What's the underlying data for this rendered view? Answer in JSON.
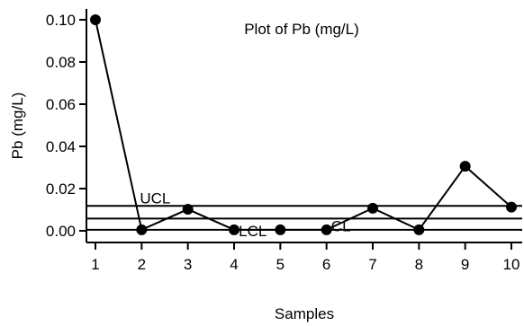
{
  "chart_data": {
    "type": "line",
    "title": "Plot of Pb (mg/L)",
    "xlabel": "Samples",
    "ylabel": "Pb (mg/L)",
    "x": [
      1,
      2,
      3,
      4,
      5,
      6,
      7,
      8,
      9,
      10
    ],
    "series": [
      {
        "values": [
          0.1,
          0.0005,
          0.0102,
          0.0005,
          0.0005,
          0.0005,
          0.0107,
          0.0005,
          0.0306,
          0.0112
        ]
      }
    ],
    "control_limits": [
      {
        "label": "UCL",
        "value": 0.0118
      },
      {
        "label": "CL",
        "value": 0.0058
      },
      {
        "label": "LCL",
        "value": 0.0005
      }
    ],
    "xlim": [
      1,
      10
    ],
    "ylim": [
      0,
      0.1
    ],
    "xticks": [
      "1",
      "2",
      "3",
      "4",
      "5",
      "6",
      "7",
      "8",
      "9",
      "10"
    ],
    "yticks": [
      "0.00",
      "0.02",
      "0.04",
      "0.06",
      "0.08",
      "0.10"
    ],
    "grid": false,
    "legend": "none",
    "colors": {
      "line": "#000000",
      "marker": "#000000",
      "background": "#ffffff"
    }
  }
}
